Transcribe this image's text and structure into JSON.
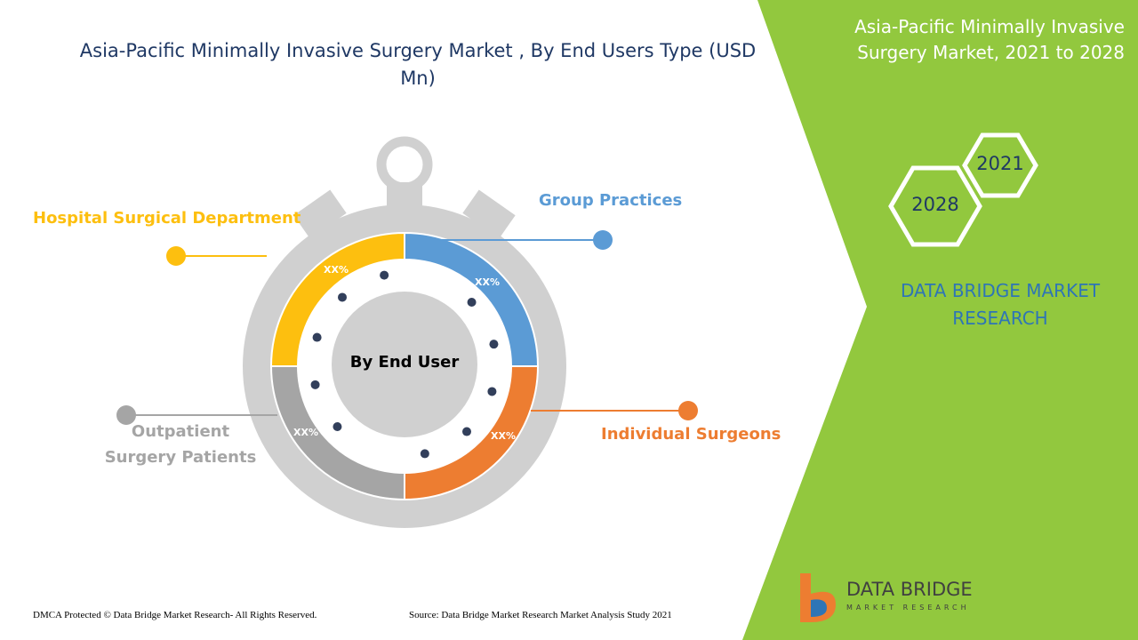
{
  "title": "Asia-Pacific Minimally Invasive Surgery Market , By End Users Type (USD Mn)",
  "center_label": "By End User",
  "segments": [
    {
      "label": "Group Practices",
      "value_label": "XX%",
      "color": "#5b9bd5"
    },
    {
      "label": "Individual Surgeons",
      "value_label": "XX%",
      "color": "#ed7d31"
    },
    {
      "label": "Outpatient Surgery Patients",
      "value_label": "XX%",
      "color": "#a5a5a5"
    },
    {
      "label": "Hospital Surgical Department",
      "value_label": "XX%",
      "color": "#fdbf0f"
    }
  ],
  "side_panel": {
    "title": "Asia-Pacific Minimally Invasive Surgery Market, 2021 to 2028",
    "years": [
      "2021",
      "2028"
    ],
    "brand": "DATA BRIDGE MARKET RESEARCH"
  },
  "logo": {
    "name": "DATA BRIDGE",
    "tagline": "MARKET RESEARCH"
  },
  "footer": {
    "copyright": "DMCA Protected © Data Bridge Market Research- All Rights Reserved.",
    "source": "Source: Data Bridge Market Research Market Analysis Study 2021"
  }
}
